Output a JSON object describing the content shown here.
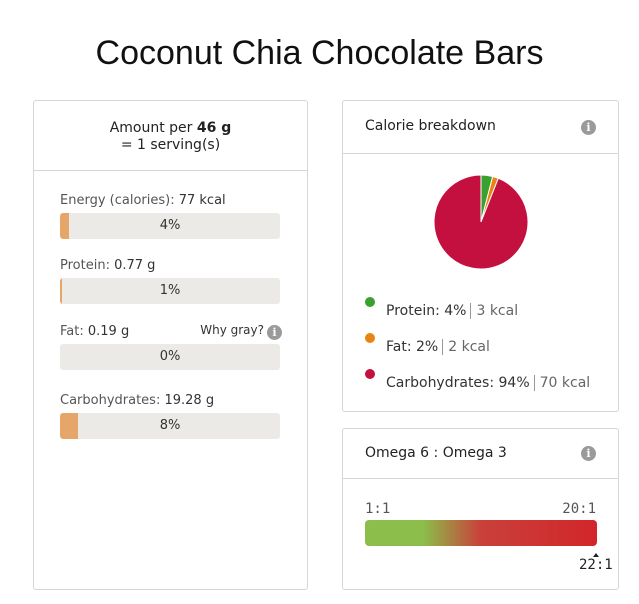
{
  "title": "Coconut Chia Chocolate Bars",
  "nutrition": {
    "amount_prefix": "Amount per",
    "amount_value": "46 g",
    "serving": "= 1 serving(s)",
    "rows": [
      {
        "label": "Energy (calories):",
        "value": "77 kcal",
        "percent": "4%",
        "fill": 0.04
      },
      {
        "label": "Protein:",
        "value": "0.77 g",
        "percent": "1%",
        "fill": 0.01
      },
      {
        "label": "Fat:",
        "value": "0.19 g",
        "percent": "0%",
        "fill": 0.0
      },
      {
        "label": "Carbohydrates:",
        "value": "19.28 g",
        "percent": "8%",
        "fill": 0.08
      }
    ],
    "why_gray": "Why gray?"
  },
  "calorie": {
    "title": "Calorie breakdown",
    "info_icon": "info-icon",
    "legend": [
      {
        "name": "Protein:",
        "percent": "4%",
        "kcal": "3 kcal",
        "color": "#3aa02f"
      },
      {
        "name": "Fat:",
        "percent": "2%",
        "kcal": "2 kcal",
        "color": "#e88413"
      },
      {
        "name": "Carbohydrates:",
        "percent": "94%",
        "kcal": "70 kcal",
        "color": "#c4103f"
      }
    ]
  },
  "chart_data": {
    "type": "pie",
    "categories": [
      "Protein",
      "Fat",
      "Carbohydrates"
    ],
    "values": [
      4,
      2,
      94
    ],
    "colors": [
      "#3aa02f",
      "#e88413",
      "#c4103f"
    ]
  },
  "omega": {
    "title": "Omega 6 : Omega 3",
    "info_icon": "info-icon",
    "scale_min": "1:1",
    "scale_max": "20:1",
    "marker": "22:1"
  }
}
